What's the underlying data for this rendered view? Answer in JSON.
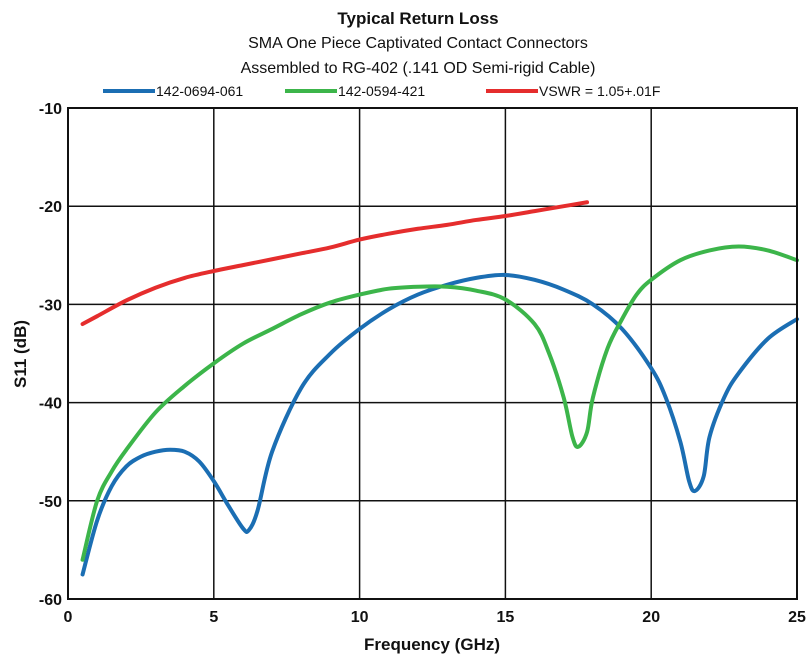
{
  "chart_data": {
    "type": "line",
    "title": "Typical Return Loss",
    "subtitle_lines": [
      "SMA One Piece Captivated Contact Connectors",
      "Assembled to RG-402 (.141 OD Semi-rigid Cable)"
    ],
    "xlabel": "Frequency (GHz)",
    "ylabel": "S11 (dB)",
    "xlim": [
      0,
      25
    ],
    "ylim": [
      -60,
      -10
    ],
    "xticks": [
      0,
      5,
      10,
      15,
      20,
      25
    ],
    "yticks": [
      -60,
      -50,
      -40,
      -30,
      -20,
      -10
    ],
    "xtick_labels": [
      "0",
      "5",
      "10",
      "15",
      "20",
      "25"
    ],
    "ytick_labels": [
      "-60",
      "-50",
      "-40",
      "-30",
      "-20",
      "-10"
    ],
    "grid": true,
    "legend_position": "top",
    "series": [
      {
        "name": "142-0694-061",
        "color": "#1b6eb3",
        "x": [
          0.5,
          1.0,
          1.5,
          2.0,
          2.5,
          3.0,
          3.5,
          4.0,
          4.5,
          5.0,
          5.5,
          6.0,
          6.2,
          6.5,
          7.0,
          8.0,
          9.0,
          10.0,
          11.0,
          12.0,
          13.0,
          14.0,
          15.0,
          16.0,
          17.0,
          18.0,
          19.0,
          20.0,
          20.5,
          21.0,
          21.3,
          21.5,
          21.8,
          22.0,
          22.5,
          23.0,
          24.0,
          25.0
        ],
        "y": [
          -57.5,
          -52.0,
          -48.5,
          -46.5,
          -45.5,
          -45.0,
          -44.8,
          -45.0,
          -46.0,
          -48.0,
          -50.5,
          -52.8,
          -53.0,
          -51.0,
          -45.0,
          -38.5,
          -35.0,
          -32.5,
          -30.5,
          -29.0,
          -28.0,
          -27.3,
          -27.0,
          -27.5,
          -28.5,
          -30.0,
          -32.5,
          -36.5,
          -39.5,
          -44.0,
          -48.0,
          -49.0,
          -47.5,
          -43.5,
          -39.5,
          -37.0,
          -33.5,
          -31.5
        ]
      },
      {
        "name": "142-0594-421",
        "color": "#3cb54a",
        "x": [
          0.5,
          1.0,
          1.5,
          2.0,
          3.0,
          4.0,
          5.0,
          6.0,
          7.0,
          8.0,
          9.0,
          10.0,
          11.0,
          12.0,
          13.0,
          14.0,
          15.0,
          16.0,
          16.5,
          17.0,
          17.3,
          17.5,
          17.8,
          18.0,
          18.5,
          19.0,
          19.5,
          20.0,
          21.0,
          22.0,
          23.0,
          24.0,
          25.0
        ],
        "y": [
          -56.0,
          -50.0,
          -47.0,
          -44.8,
          -41.0,
          -38.3,
          -36.0,
          -34.0,
          -32.5,
          -31.0,
          -29.8,
          -29.0,
          -28.4,
          -28.2,
          -28.2,
          -28.6,
          -29.5,
          -32.0,
          -35.0,
          -39.5,
          -43.5,
          -44.5,
          -43.0,
          -39.5,
          -34.5,
          -31.5,
          -29.0,
          -27.5,
          -25.5,
          -24.5,
          -24.1,
          -24.5,
          -25.5
        ]
      },
      {
        "name": "VSWR = 1.05+.01F",
        "color": "#e52d2d",
        "x": [
          0.5,
          1.0,
          2.0,
          3.0,
          4.0,
          5.0,
          6.0,
          7.0,
          8.0,
          9.0,
          10.0,
          11.0,
          12.0,
          13.0,
          14.0,
          15.0,
          16.0,
          17.0,
          17.8
        ],
        "y": [
          -32.0,
          -31.2,
          -29.6,
          -28.3,
          -27.3,
          -26.6,
          -26.0,
          -25.4,
          -24.8,
          -24.2,
          -23.4,
          -22.8,
          -22.3,
          -21.9,
          -21.4,
          -21.0,
          -20.5,
          -20.0,
          -19.6
        ]
      }
    ]
  }
}
